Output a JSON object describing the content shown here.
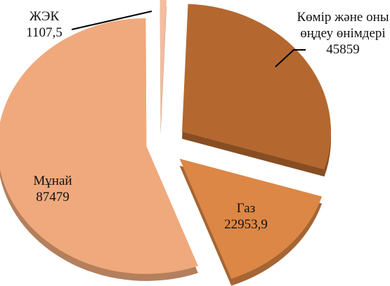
{
  "chart_data": {
    "type": "pie",
    "categories": [
      "Көмір және оны өңдеу өнімдері",
      "Газ",
      "Мұнай",
      "ЖЭК"
    ],
    "values": [
      45859,
      22953.9,
      87479,
      1107.5
    ],
    "value_labels": [
      "45859",
      "22953,9",
      "87479",
      "1107,5"
    ],
    "colors": [
      "#b4682f",
      "#dc8745",
      "#f0a97c",
      "#f3bda0"
    ]
  }
}
